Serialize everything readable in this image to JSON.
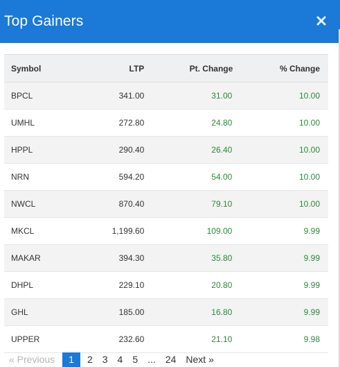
{
  "modal": {
    "title": "Top Gainers"
  },
  "table": {
    "headers": {
      "symbol": "Symbol",
      "ltp": "LTP",
      "pt_change": "Pt. Change",
      "pct_change": "% Change"
    },
    "rows": [
      {
        "symbol": "BPCL",
        "ltp": "341.00",
        "pt_change": "31.00",
        "pct_change": "10.00"
      },
      {
        "symbol": "UMHL",
        "ltp": "272.80",
        "pt_change": "24.80",
        "pct_change": "10.00"
      },
      {
        "symbol": "HPPL",
        "ltp": "290.40",
        "pt_change": "26.40",
        "pct_change": "10.00"
      },
      {
        "symbol": "NRN",
        "ltp": "594.20",
        "pt_change": "54.00",
        "pct_change": "10.00"
      },
      {
        "symbol": "NWCL",
        "ltp": "870.40",
        "pt_change": "79.10",
        "pct_change": "10.00"
      },
      {
        "symbol": "MKCL",
        "ltp": "1,199.60",
        "pt_change": "109.00",
        "pct_change": "9.99"
      },
      {
        "symbol": "MAKAR",
        "ltp": "394.30",
        "pt_change": "35.80",
        "pct_change": "9.99"
      },
      {
        "symbol": "DHPL",
        "ltp": "229.10",
        "pt_change": "20.80",
        "pct_change": "9.99"
      },
      {
        "symbol": "GHL",
        "ltp": "185.00",
        "pt_change": "16.80",
        "pct_change": "9.99"
      },
      {
        "symbol": "UPPER",
        "ltp": "232.60",
        "pt_change": "21.10",
        "pct_change": "9.98"
      }
    ]
  },
  "pagination": {
    "previous": "« Previous",
    "pages": [
      "1",
      "2",
      "3",
      "4",
      "5"
    ],
    "ellipsis": "...",
    "last_page": "24",
    "next": "Next »",
    "active_page": "1"
  },
  "colors": {
    "header_bg": "#1b79d7",
    "positive": "#2a8a3a",
    "active_page": "#1b79d7"
  },
  "icons": {
    "close": "close-icon"
  }
}
